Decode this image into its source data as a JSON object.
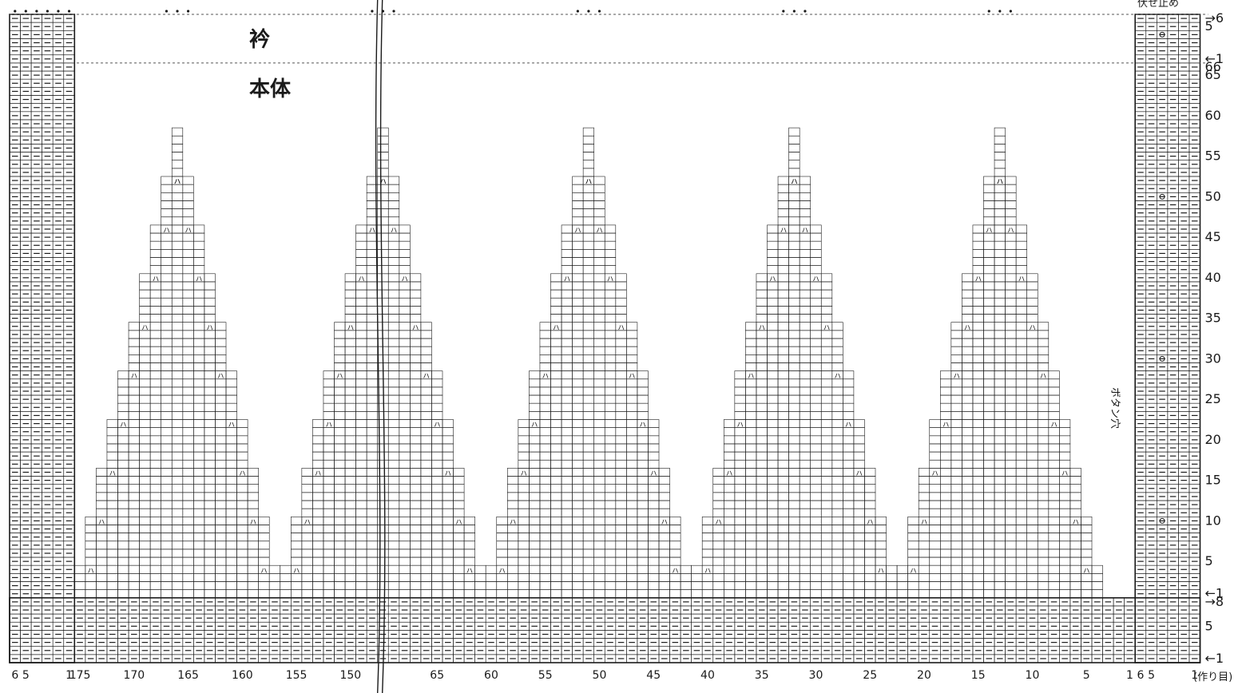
{
  "labels": {
    "collar": "衿",
    "body": "本体",
    "bind_off": "伏せ止め",
    "buttonhole": "ボタン穴",
    "cast_on": "(作り目)"
  },
  "symbols": {
    "knit": "|",
    "purl": "−",
    "k2tog": "ㇵ",
    "ssk": "ㇵ",
    "yarn_over": "ο",
    "bind_off": "•"
  },
  "colors": {
    "line": "#1a1a1a",
    "dashed_guide": "#555555",
    "background": "#ffffff"
  },
  "right_row_labels": [
    {
      "text": "1",
      "row": 1,
      "arrow": "←"
    },
    {
      "text": "5",
      "row": 5,
      "arrow": ""
    },
    {
      "text": "8",
      "row": 8,
      "arrow": "→"
    },
    {
      "text": "1",
      "row": 9,
      "arrow": "←"
    },
    {
      "text": "5",
      "row": 13,
      "arrow": ""
    },
    {
      "text": "10",
      "row": 18,
      "arrow": ""
    },
    {
      "text": "15",
      "row": 23,
      "arrow": ""
    },
    {
      "text": "20",
      "row": 28,
      "arrow": ""
    },
    {
      "text": "25",
      "row": 33,
      "arrow": ""
    },
    {
      "text": "30",
      "row": 38,
      "arrow": ""
    },
    {
      "text": "35",
      "row": 43,
      "arrow": ""
    },
    {
      "text": "40",
      "row": 48,
      "arrow": ""
    },
    {
      "text": "45",
      "row": 53,
      "arrow": ""
    },
    {
      "text": "50",
      "row": 58,
      "arrow": ""
    },
    {
      "text": "55",
      "row": 63,
      "arrow": ""
    },
    {
      "text": "60",
      "row": 68,
      "arrow": ""
    },
    {
      "text": "65",
      "row": 73,
      "arrow": ""
    },
    {
      "text": "66",
      "row": 74,
      "arrow": ""
    },
    {
      "text": "1",
      "row": 75,
      "arrow": "←"
    },
    {
      "text": "5",
      "row": 79,
      "arrow": ""
    },
    {
      "text": "6",
      "row": 80,
      "arrow": "→"
    }
  ],
  "bottom_stitch_labels": [
    {
      "text": "6",
      "col": 1
    },
    {
      "text": "5",
      "col": 2
    },
    {
      "text": "1",
      "col": 6
    },
    {
      "text": "175",
      "col": 7
    },
    {
      "text": "170",
      "col": 12
    },
    {
      "text": "165",
      "col": 17
    },
    {
      "text": "160",
      "col": 22
    },
    {
      "text": "155",
      "col": 27
    },
    {
      "text": "150",
      "col": 32
    },
    {
      "text": "65",
      "col": 40
    },
    {
      "text": "60",
      "col": 45
    },
    {
      "text": "55",
      "col": 50
    },
    {
      "text": "50",
      "col": 55
    },
    {
      "text": "45",
      "col": 60
    },
    {
      "text": "40",
      "col": 65
    },
    {
      "text": "35",
      "col": 70
    },
    {
      "text": "30",
      "col": 75
    },
    {
      "text": "25",
      "col": 80
    },
    {
      "text": "20",
      "col": 85
    },
    {
      "text": "15",
      "col": 90
    },
    {
      "text": "10",
      "col": 95
    },
    {
      "text": "5",
      "col": 100
    },
    {
      "text": "1",
      "col": 104
    },
    {
      "text": "6",
      "col": 105
    },
    {
      "text": "5",
      "col": 106
    },
    {
      "text": "1",
      "col": 110
    }
  ],
  "pattern": {
    "total_columns": 110,
    "total_rows": 80,
    "band_width_stitches": 6,
    "button_holes_rows": [
      18,
      38,
      58,
      78
    ]
  }
}
